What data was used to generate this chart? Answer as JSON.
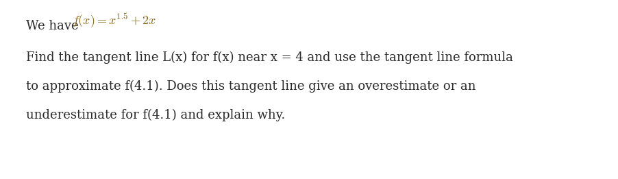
{
  "background_color": "#ffffff",
  "we_have_text": "We have",
  "formula": "$f(x) = x^{1.5} + 2x$",
  "paragraph_lines": [
    "Find the tangent line L(x) for f(x) near x = 4 and use the tangent line formula",
    "to approximate f(4.1). Does this tangent line give an overestimate or an",
    "underestimate for f(4.1) and explain why."
  ],
  "text_color": "#2b2b2b",
  "formula_color": "#8B6914",
  "figwidth": 9.02,
  "figheight": 2.61,
  "dpi": 100
}
